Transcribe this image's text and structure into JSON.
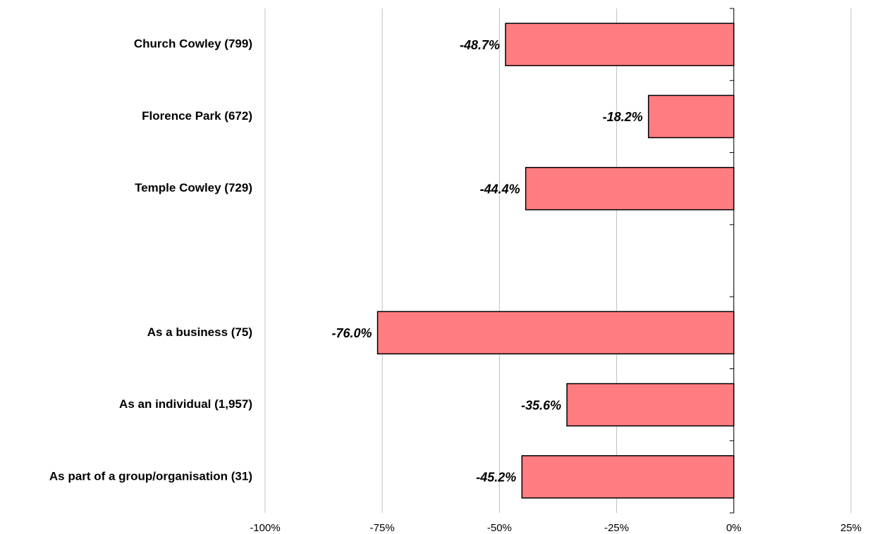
{
  "chart_data": {
    "type": "bar",
    "orientation": "horizontal",
    "categories": [
      "Church Cowley (799)",
      "Florence Park (672)",
      "Temple Cowley (729)",
      null,
      "As a business (75)",
      "As an individual (1,957)",
      "As part of a group/organisation (31)"
    ],
    "values": [
      -48.7,
      -18.2,
      -44.4,
      null,
      -76.0,
      -35.6,
      -45.2
    ],
    "value_labels": [
      "-48.7%",
      "-18.2%",
      "-44.4%",
      null,
      "-76.0%",
      "-35.6%",
      "-45.2%"
    ],
    "color": "#ff7c80",
    "xlim": [
      -100,
      25
    ],
    "xticks": [
      {
        "value": -100,
        "label": "-100%"
      },
      {
        "value": -75,
        "label": "-75%"
      },
      {
        "value": -50,
        "label": "-50%"
      },
      {
        "value": -25,
        "label": "-25%"
      },
      {
        "value": 0,
        "label": "0%"
      },
      {
        "value": 25,
        "label": "25%"
      }
    ],
    "grid": true
  }
}
